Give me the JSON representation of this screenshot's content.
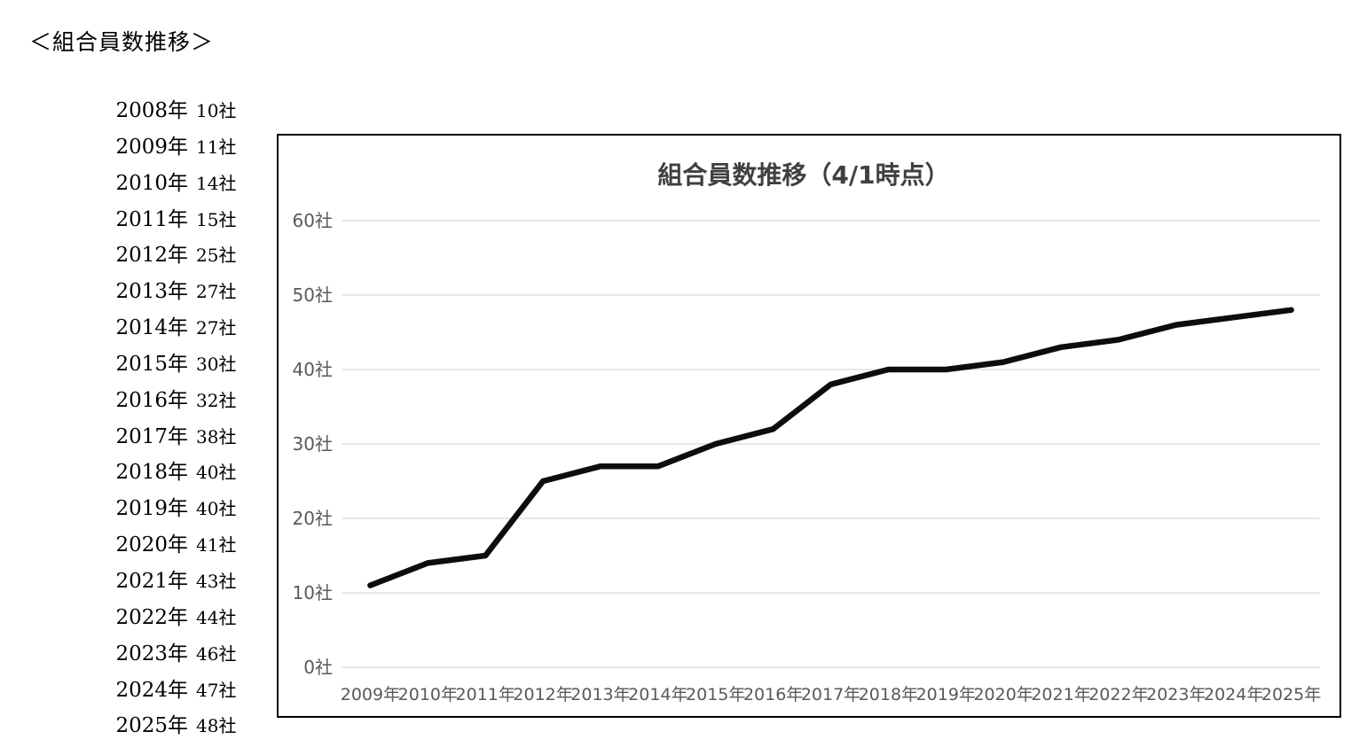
{
  "page": {
    "heading": "＜組合員数推移＞"
  },
  "summary_list": {
    "rows": [
      {
        "year": "2008年",
        "count": "10社"
      },
      {
        "year": "2009年",
        "count": "11社"
      },
      {
        "year": "2010年",
        "count": "14社"
      },
      {
        "year": "2011年",
        "count": "15社"
      },
      {
        "year": "2012年",
        "count": "25社"
      },
      {
        "year": "2013年",
        "count": "27社"
      },
      {
        "year": "2014年",
        "count": "27社"
      },
      {
        "year": "2015年",
        "count": "30社"
      },
      {
        "year": "2016年",
        "count": "32社"
      },
      {
        "year": "2017年",
        "count": "38社"
      },
      {
        "year": "2018年",
        "count": "40社"
      },
      {
        "year": "2019年",
        "count": "40社"
      },
      {
        "year": "2020年",
        "count": "41社"
      },
      {
        "year": "2021年",
        "count": "43社"
      },
      {
        "year": "2022年",
        "count": "44社"
      },
      {
        "year": "2023年",
        "count": "46社"
      },
      {
        "year": "2024年",
        "count": "47社"
      },
      {
        "year": "2025年",
        "count": "48社"
      }
    ]
  },
  "chart_data": {
    "type": "line",
    "title": "組合員数推移（4/1時点）",
    "categories": [
      "2009年",
      "2010年",
      "2011年",
      "2012年",
      "2013年",
      "2014年",
      "2015年",
      "2016年",
      "2017年",
      "2018年",
      "2019年",
      "2020年",
      "2021年",
      "2022年",
      "2023年",
      "2024年",
      "2025年"
    ],
    "values": [
      11,
      14,
      15,
      25,
      27,
      27,
      30,
      32,
      38,
      40,
      40,
      41,
      43,
      44,
      46,
      47,
      48
    ],
    "xlabel": "",
    "ylabel": "",
    "ylim": [
      0,
      60
    ],
    "ytick_step": 10,
    "ytick_labels": [
      "0社",
      "10社",
      "20社",
      "30社",
      "40社",
      "50社",
      "60社"
    ],
    "unit_suffix": "社",
    "grid": true,
    "legend": false,
    "colors": {
      "line": "#0d0d0d",
      "grid": "#d9d9d9",
      "axis_labels": "#595959",
      "title": "#404040",
      "border": "#000000"
    }
  }
}
